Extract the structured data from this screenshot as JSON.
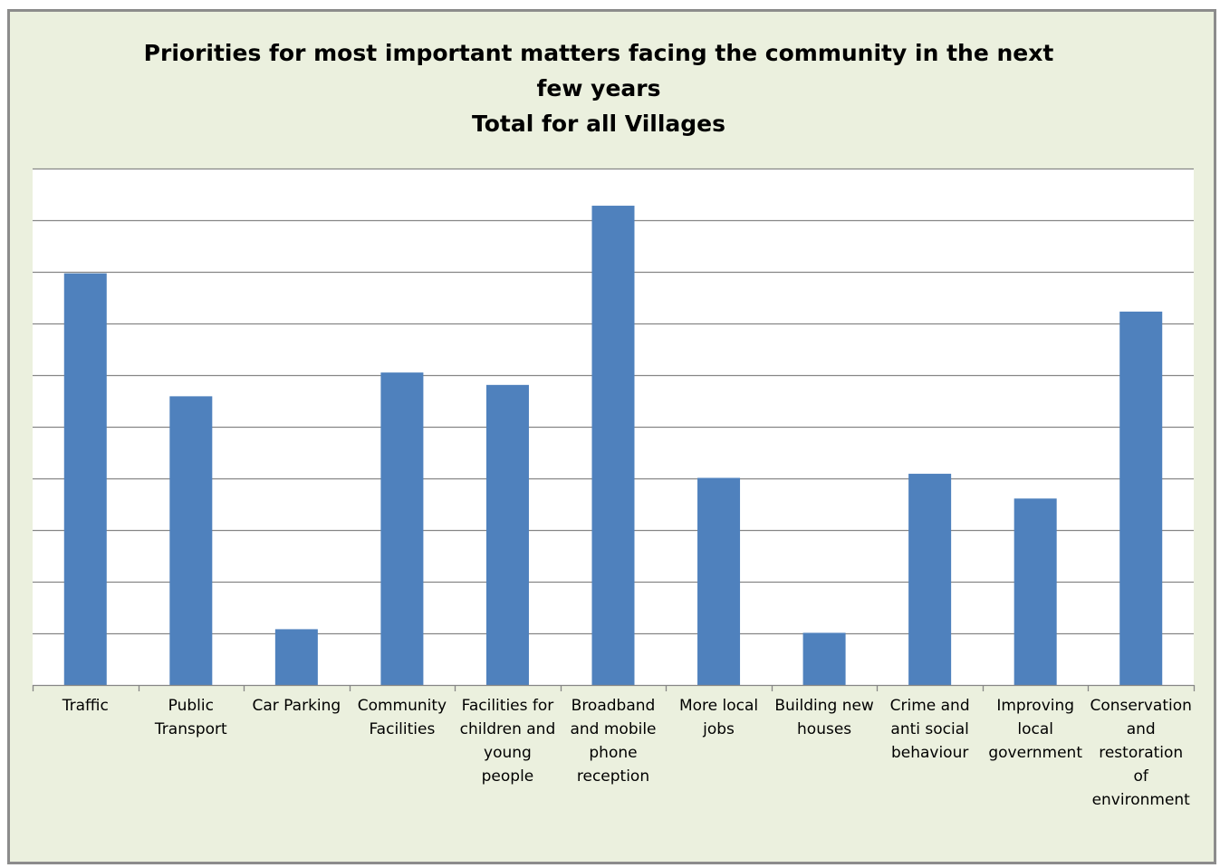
{
  "chart_data": {
    "type": "bar",
    "title_lines": [
      "Priorities for most important matters facing the community in the next",
      "few years",
      "Total for all Villages"
    ],
    "categories": [
      [
        "Traffic"
      ],
      [
        "Public",
        "Transport"
      ],
      [
        "Car Parking"
      ],
      [
        "Community",
        "Facilities"
      ],
      [
        "Facilities for",
        "children and",
        "young",
        "people"
      ],
      [
        "Broadband",
        "and mobile",
        "phone",
        "reception"
      ],
      [
        "More local",
        "jobs"
      ],
      [
        "Building new",
        "houses"
      ],
      [
        "Crime and",
        "anti social",
        "behaviour"
      ],
      [
        "Improving",
        "local",
        "government"
      ],
      [
        "Conservation",
        "and",
        "restoration",
        "of",
        "environment"
      ]
    ],
    "values": [
      79.7,
      55.9,
      10.8,
      60.5,
      58.1,
      92.8,
      40.1,
      10.1,
      40.9,
      36.1,
      72.3
    ],
    "ylim": [
      0,
      100
    ],
    "y_gridline_step": 10,
    "show_y_tick_labels": false,
    "grid": true,
    "legend": "none",
    "colors": {
      "bar": "#4f81bd",
      "plot_background": "#ffffff",
      "gridline": "#868686",
      "frame_background": "#ebf0de",
      "frame_border": "#8c8c8c"
    }
  }
}
